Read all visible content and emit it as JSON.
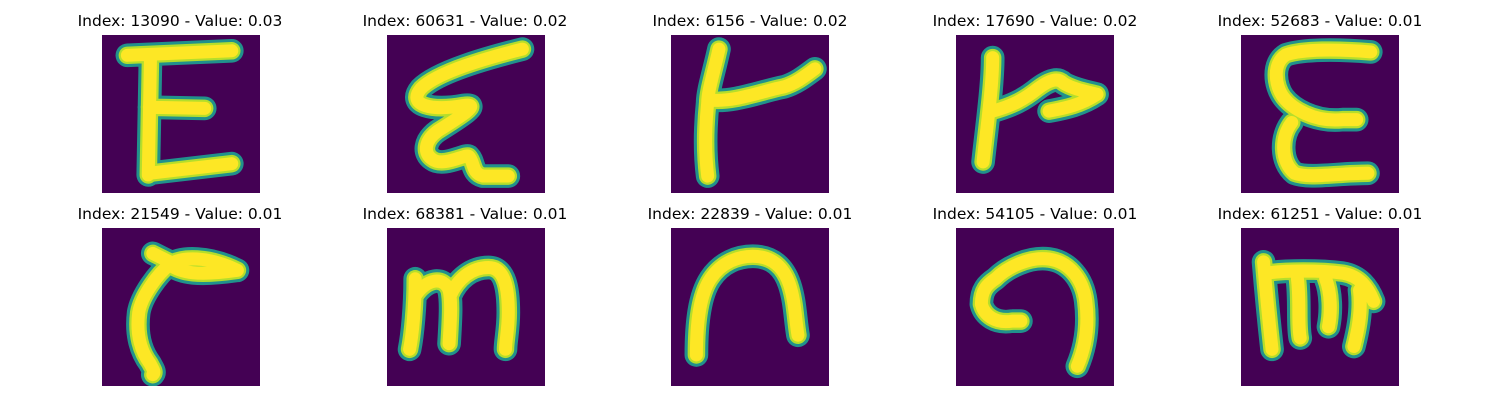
{
  "colors": {
    "background": "#440154",
    "stroke_core": "#fde725",
    "stroke_mid": "#b5de2b",
    "stroke_edge": "#21918c"
  },
  "images": [
    {
      "index": "13090",
      "value": "0.03",
      "title": "Index: 13090 - Value: 0.03",
      "glyph": "E"
    },
    {
      "index": "60631",
      "value": "0.02",
      "title": "Index: 60631 - Value: 0.02",
      "glyph": "E"
    },
    {
      "index": "6156",
      "value": "0.02",
      "title": "Index: 6156 - Value: 0.02",
      "glyph": "r"
    },
    {
      "index": "17690",
      "value": "0.02",
      "title": "Index: 17690 - Value: 0.02",
      "glyph": "r"
    },
    {
      "index": "52683",
      "value": "0.01",
      "title": "Index: 52683 - Value: 0.01",
      "glyph": "E"
    },
    {
      "index": "21549",
      "value": "0.01",
      "title": "Index: 21549 - Value: 0.01",
      "glyph": "r"
    },
    {
      "index": "68381",
      "value": "0.01",
      "title": "Index: 68381 - Value: 0.01",
      "glyph": "m"
    },
    {
      "index": "22839",
      "value": "0.01",
      "title": "Index: 22839 - Value: 0.01",
      "glyph": "n"
    },
    {
      "index": "54105",
      "value": "0.01",
      "title": "Index: 54105 - Value: 0.01",
      "glyph": "a"
    },
    {
      "index": "61251",
      "value": "0.01",
      "title": "Index: 61251 - Value: 0.01",
      "glyph": "m"
    }
  ]
}
